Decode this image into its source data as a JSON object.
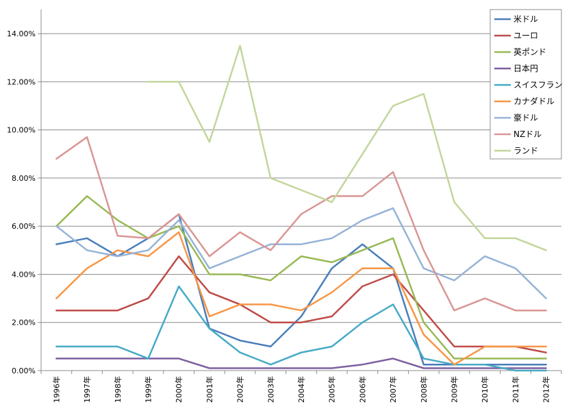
{
  "chart_data": {
    "type": "line",
    "categories": [
      "1996年",
      "1997年",
      "1998年",
      "1999年",
      "2000年",
      "2001年",
      "2002年",
      "2003年",
      "2004年",
      "2005年",
      "2006年",
      "2007年",
      "2008年",
      "2009年",
      "2010年",
      "2011年",
      "2012年"
    ],
    "y_ticks": [
      "0.00%",
      "2.00%",
      "4.00%",
      "6.00%",
      "8.00%",
      "10.00%",
      "12.00%",
      "14.00%"
    ],
    "ylim": [
      0,
      15
    ],
    "grid": true,
    "legend_position": "top-right",
    "series": [
      {
        "name": "米ドル",
        "color": "#4a7ebb",
        "values": [
          5.25,
          5.5,
          4.75,
          5.5,
          6.5,
          1.75,
          1.25,
          1.0,
          2.25,
          4.25,
          5.25,
          4.25,
          0.25,
          0.25,
          0.25,
          0.25,
          0.25
        ]
      },
      {
        "name": "ユーロ",
        "color": "#be4b48",
        "values": [
          2.5,
          2.5,
          2.5,
          3.0,
          4.75,
          3.25,
          2.75,
          2.0,
          2.0,
          2.25,
          3.5,
          4.0,
          2.5,
          1.0,
          1.0,
          1.0,
          0.75
        ]
      },
      {
        "name": "英ポンド",
        "color": "#98b954",
        "values": [
          6.0,
          7.25,
          6.25,
          5.5,
          6.0,
          4.0,
          4.0,
          3.75,
          4.75,
          4.5,
          5.0,
          5.5,
          2.0,
          0.5,
          0.5,
          0.5,
          0.5
        ]
      },
      {
        "name": "日本円",
        "color": "#7d5fa0",
        "values": [
          0.5,
          0.5,
          0.5,
          0.5,
          0.5,
          0.1,
          0.1,
          0.1,
          0.1,
          0.1,
          0.25,
          0.5,
          0.1,
          0.1,
          0.1,
          0.1,
          0.1
        ]
      },
      {
        "name": "スイスフラン",
        "color": "#46aac5",
        "values": [
          1.0,
          1.0,
          1.0,
          0.5,
          3.5,
          1.75,
          0.75,
          0.25,
          0.75,
          1.0,
          2.0,
          2.75,
          0.5,
          0.25,
          0.25,
          0.0,
          0.0
        ]
      },
      {
        "name": "カナダドル",
        "color": "#f79646",
        "values": [
          3.0,
          4.25,
          5.0,
          4.75,
          5.75,
          2.25,
          2.75,
          2.75,
          2.5,
          3.25,
          4.25,
          4.25,
          1.5,
          0.25,
          1.0,
          1.0,
          1.0
        ]
      },
      {
        "name": "豪ドル",
        "color": "#95b3d7",
        "values": [
          6.0,
          5.0,
          4.75,
          5.0,
          6.25,
          4.25,
          4.75,
          5.25,
          5.25,
          5.5,
          6.25,
          6.75,
          4.25,
          3.75,
          4.75,
          4.25,
          3.0
        ]
      },
      {
        "name": "NZドル",
        "color": "#d99694",
        "values": [
          8.8,
          9.7,
          5.6,
          5.5,
          6.5,
          4.75,
          5.75,
          5.0,
          6.5,
          7.25,
          7.25,
          8.25,
          5.0,
          2.5,
          3.0,
          2.5,
          2.5
        ]
      },
      {
        "name": "ランド",
        "color": "#c3d69b",
        "values": [
          null,
          null,
          null,
          12.0,
          12.0,
          9.5,
          13.5,
          8.0,
          7.5,
          7.0,
          9.0,
          11.0,
          11.5,
          7.0,
          5.5,
          5.5,
          5.0
        ]
      }
    ]
  }
}
